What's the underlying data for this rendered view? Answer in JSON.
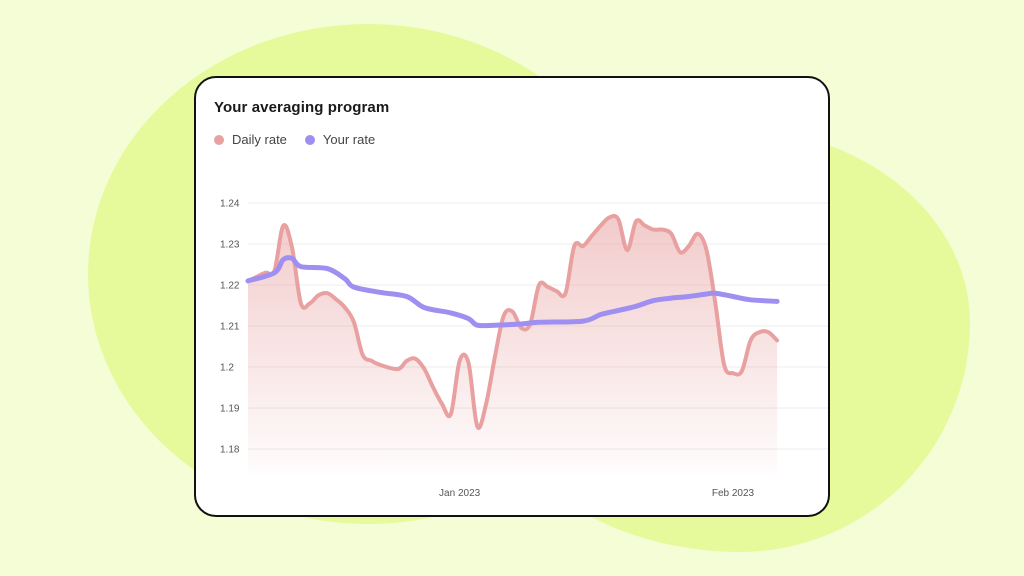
{
  "card": {
    "title": "Your averaging program"
  },
  "colors": {
    "background": "#f4fdd6",
    "blob": "#e6fa9b",
    "daily": "#e8a0a0",
    "yours": "#9e8ff0"
  },
  "chart_data": {
    "type": "line",
    "title": "Your averaging program",
    "xlabel": "",
    "ylabel": "",
    "ylim": [
      1.18,
      1.24
    ],
    "yticks": [
      1.24,
      1.23,
      1.22,
      1.21,
      1.2,
      1.19,
      1.18
    ],
    "ytick_labels": [
      "1.24",
      "1.23",
      "1.22",
      "1.21",
      "1.2",
      "1.19",
      "1.18"
    ],
    "xlim": [
      "2022-12-08",
      "2023-02-12"
    ],
    "xticks": [
      {
        "date": "2023-01-01",
        "label": "Jan 2023"
      },
      {
        "date": "2023-02-01",
        "label": "Feb 2023"
      }
    ],
    "legend": "top-left",
    "grid": true,
    "series": [
      {
        "name": "Daily rate",
        "color": "#e8a0a0",
        "area_fill": true,
        "points": [
          [
            "2022-12-08",
            1.221
          ],
          [
            "2022-12-09",
            1.222
          ],
          [
            "2022-12-10",
            1.223
          ],
          [
            "2022-12-11",
            1.2235
          ],
          [
            "2022-12-12",
            1.2345
          ],
          [
            "2022-12-13",
            1.229
          ],
          [
            "2022-12-14",
            1.2155
          ],
          [
            "2022-12-15",
            1.2155
          ],
          [
            "2022-12-16",
            1.2175
          ],
          [
            "2022-12-17",
            1.218
          ],
          [
            "2022-12-18",
            1.2165
          ],
          [
            "2022-12-19",
            1.2145
          ],
          [
            "2022-12-20",
            1.211
          ],
          [
            "2022-12-21",
            1.203
          ],
          [
            "2022-12-22",
            1.2015
          ],
          [
            "2022-12-23",
            1.2005
          ],
          [
            "2022-12-25",
            1.1995
          ],
          [
            "2022-12-26",
            1.2015
          ],
          [
            "2022-12-27",
            1.202
          ],
          [
            "2022-12-28",
            1.1995
          ],
          [
            "2022-12-29",
            1.195
          ],
          [
            "2022-12-30",
            1.191
          ],
          [
            "2022-12-31",
            1.1885
          ],
          [
            "2023-01-01",
            1.2015
          ],
          [
            "2023-01-02",
            1.201
          ],
          [
            "2023-01-03",
            1.1855
          ],
          [
            "2023-01-04",
            1.191
          ],
          [
            "2023-01-05",
            1.2025
          ],
          [
            "2023-01-06",
            1.2125
          ],
          [
            "2023-01-07",
            1.2135
          ],
          [
            "2023-01-08",
            1.2095
          ],
          [
            "2023-01-09",
            1.2105
          ],
          [
            "2023-01-10",
            1.22
          ],
          [
            "2023-01-11",
            1.2195
          ],
          [
            "2023-01-12",
            1.2185
          ],
          [
            "2023-01-13",
            1.218
          ],
          [
            "2023-01-14",
            1.2295
          ],
          [
            "2023-01-15",
            1.2295
          ],
          [
            "2023-01-16",
            1.232
          ],
          [
            "2023-01-17",
            1.2345
          ],
          [
            "2023-01-18",
            1.2365
          ],
          [
            "2023-01-19",
            1.236
          ],
          [
            "2023-01-20",
            1.2285
          ],
          [
            "2023-01-21",
            1.2355
          ],
          [
            "2023-01-22",
            1.2345
          ],
          [
            "2023-01-23",
            1.2335
          ],
          [
            "2023-01-24",
            1.2335
          ],
          [
            "2023-01-25",
            1.2325
          ],
          [
            "2023-01-26",
            1.228
          ],
          [
            "2023-01-27",
            1.2295
          ],
          [
            "2023-01-28",
            1.2325
          ],
          [
            "2023-01-29",
            1.2285
          ],
          [
            "2023-01-30",
            1.2155
          ],
          [
            "2023-01-31",
            1.2005
          ],
          [
            "2023-02-01",
            1.1985
          ],
          [
            "2023-02-02",
            1.199
          ],
          [
            "2023-02-03",
            1.2065
          ],
          [
            "2023-02-04",
            1.2085
          ],
          [
            "2023-02-05",
            1.2085
          ],
          [
            "2023-02-06",
            1.2065
          ]
        ]
      },
      {
        "name": "Your rate",
        "color": "#9e8ff0",
        "area_fill": false,
        "points": [
          [
            "2022-12-08",
            1.221
          ],
          [
            "2022-12-11",
            1.223
          ],
          [
            "2022-12-12",
            1.2262
          ],
          [
            "2022-12-13",
            1.2265
          ],
          [
            "2022-12-14",
            1.2245
          ],
          [
            "2022-12-17",
            1.224
          ],
          [
            "2022-12-19",
            1.2215
          ],
          [
            "2022-12-20",
            1.2195
          ],
          [
            "2022-12-23",
            1.2182
          ],
          [
            "2022-12-26",
            1.2172
          ],
          [
            "2022-12-28",
            1.2145
          ],
          [
            "2022-12-31",
            1.2132
          ],
          [
            "2023-01-02",
            1.2118
          ],
          [
            "2023-01-03",
            1.2102
          ],
          [
            "2023-01-05",
            1.2102
          ],
          [
            "2023-01-08",
            1.2105
          ],
          [
            "2023-01-10",
            1.2109
          ],
          [
            "2023-01-15",
            1.2112
          ],
          [
            "2023-01-17",
            1.2128
          ],
          [
            "2023-01-19",
            1.2138
          ],
          [
            "2023-01-21",
            1.2148
          ],
          [
            "2023-01-23",
            1.2162
          ],
          [
            "2023-01-25",
            1.2168
          ],
          [
            "2023-01-27",
            1.2172
          ],
          [
            "2023-01-29",
            1.2178
          ],
          [
            "2023-01-30",
            1.218
          ],
          [
            "2023-02-01",
            1.2172
          ],
          [
            "2023-02-03",
            1.2164
          ],
          [
            "2023-02-06",
            1.216
          ]
        ]
      }
    ]
  }
}
